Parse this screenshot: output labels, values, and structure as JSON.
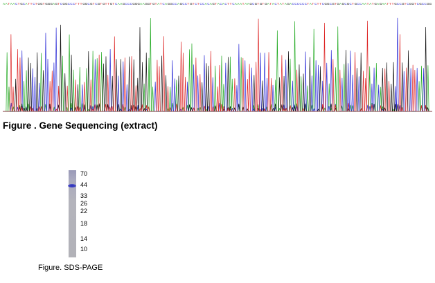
{
  "sequencing": {
    "caption": "Figure . Gene Sequencing (extract)",
    "base_colors": {
      "A": "#22aa22",
      "C": "#2b2bd6",
      "G": "#111111",
      "T": "#dd2222"
    },
    "trace_seed": 9127
  },
  "sds_page": {
    "caption": "Figure. SDS-PAGE",
    "markers": [
      "70",
      "44",
      "33",
      "26",
      "22",
      "18",
      "14",
      "10"
    ],
    "band_marker": "44"
  }
}
